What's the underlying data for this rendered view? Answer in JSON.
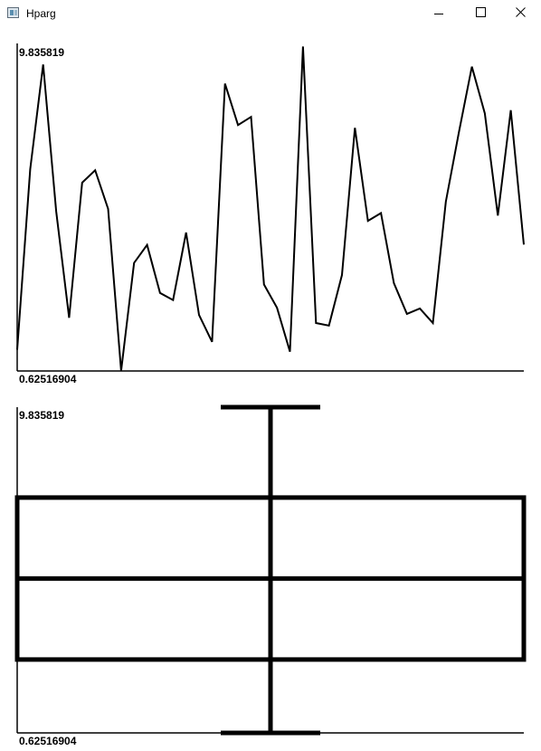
{
  "window": {
    "title": "Hparg"
  },
  "chart_data": [
    {
      "type": "line",
      "ylim": [
        0.62516904,
        9.835819
      ],
      "ytick_labels": {
        "max": "9.835819",
        "min": "0.62516904"
      },
      "x": [
        0,
        1,
        2,
        3,
        4,
        5,
        6,
        7,
        8,
        9,
        10,
        11,
        12,
        13,
        14,
        15,
        16,
        17,
        18,
        19,
        20,
        21,
        22,
        23,
        24,
        25,
        26,
        27,
        28,
        29,
        30,
        31,
        32,
        33,
        34,
        35,
        36,
        37,
        38,
        39
      ],
      "values": [
        1.23,
        6.33,
        9.29,
        5.14,
        2.13,
        5.95,
        6.3,
        5.21,
        0.63,
        3.68,
        4.19,
        2.83,
        2.63,
        4.54,
        2.21,
        1.45,
        8.75,
        7.58,
        7.81,
        3.07,
        2.41,
        1.17,
        9.8,
        1.98,
        1.91,
        3.34,
        7.5,
        4.87,
        5.09,
        3.11,
        2.24,
        2.39,
        1.98,
        5.41,
        7.37,
        9.23,
        7.91,
        5.02,
        8.0,
        4.2
      ]
    },
    {
      "type": "box",
      "ylim": [
        0.62516904,
        9.835819
      ],
      "ytick_labels": {
        "max": "9.835819",
        "min": "0.62516904"
      },
      "whisker_low": 0.62516904,
      "q1": 2.7,
      "median": 4.99,
      "q3": 7.28,
      "whisker_high": 9.835819
    }
  ]
}
